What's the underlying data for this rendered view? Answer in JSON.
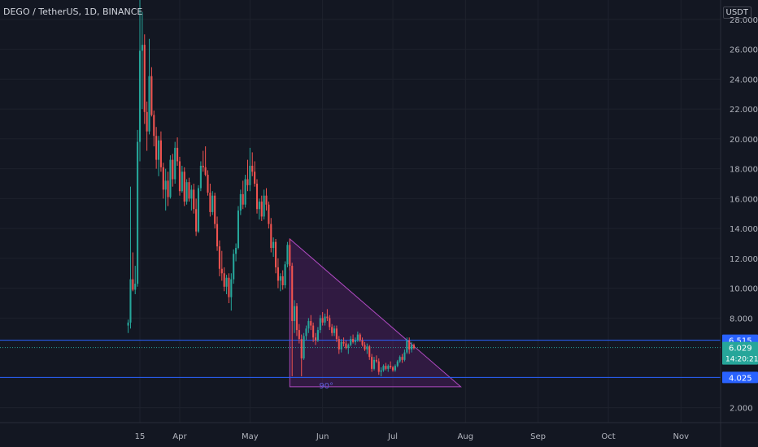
{
  "header": {
    "symbol": "DEGO / TetherUS, 1D, BINANCE",
    "currency": "USDT"
  },
  "chart_data": {
    "type": "candlestick",
    "title": "DEGO / TetherUS, 1D, BINANCE",
    "y_axis": {
      "ticks": [
        "28.000",
        "26.000",
        "24.000",
        "22.000",
        "20.000",
        "18.000",
        "16.000",
        "14.000",
        "12.000",
        "10.000",
        "8.000",
        "4.000",
        "2.000"
      ],
      "tick_values": [
        28,
        26,
        24,
        22,
        20,
        18,
        16,
        14,
        12,
        10,
        8,
        4,
        2
      ],
      "ylim": [
        1,
        29.3
      ]
    },
    "x_axis": {
      "labels": [
        "15",
        "Apr",
        "May",
        "Jun",
        "Jul",
        "Aug",
        "Sep",
        "Oct",
        "Nov"
      ],
      "dates": [
        "2021-03-15",
        "2021-04-01",
        "2021-05-01",
        "2021-06-01",
        "2021-07-01",
        "2021-08-01",
        "2021-09-01",
        "2021-10-01",
        "2021-11-01"
      ]
    },
    "grid": true,
    "horizontal_lines": [
      {
        "price": 6.515,
        "label": "6.515",
        "color": "#2962ff"
      },
      {
        "price": 4.025,
        "label": "4.025",
        "color": "#2962ff"
      }
    ],
    "price_marker": {
      "price": 6.029,
      "label": "6.029",
      "countdown": "14:20:21",
      "color": "#26a69a"
    },
    "triangle": {
      "points": [
        [
          "2021-05-18",
          13.3
        ],
        [
          "2021-05-18",
          3.4
        ],
        [
          "2021-07-30",
          3.4
        ]
      ],
      "angle_label": "90°",
      "color": "#9c27b0"
    },
    "series": [
      {
        "name": "DEGO/USDT",
        "colors": {
          "up": "#26a69a",
          "down": "#ef5350"
        },
        "ohlc": [
          [
            "2021-03-10",
            7.5,
            7.9,
            7.0,
            7.7
          ],
          [
            "2021-03-11",
            7.7,
            16.8,
            7.3,
            10.6
          ],
          [
            "2021-03-12",
            10.6,
            12.4,
            9.8,
            9.9
          ],
          [
            "2021-03-13",
            9.9,
            11.5,
            9.6,
            10.3
          ],
          [
            "2021-03-14",
            10.3,
            20.6,
            10.1,
            19.8
          ],
          [
            "2021-03-15",
            19.8,
            29.3,
            18.5,
            25.9
          ],
          [
            "2021-03-16",
            25.9,
            28.5,
            22.0,
            26.3
          ],
          [
            "2021-03-17",
            26.3,
            27.0,
            21.0,
            21.8
          ],
          [
            "2021-03-18",
            21.8,
            22.5,
            19.2,
            20.5
          ],
          [
            "2021-03-19",
            20.5,
            26.7,
            20.3,
            24.2
          ],
          [
            "2021-03-20",
            24.2,
            24.8,
            21.5,
            21.6
          ],
          [
            "2021-03-21",
            21.6,
            21.9,
            19.5,
            20.2
          ],
          [
            "2021-03-22",
            20.2,
            20.8,
            18.0,
            18.6
          ],
          [
            "2021-03-23",
            18.6,
            20.2,
            17.5,
            19.9
          ],
          [
            "2021-03-24",
            19.9,
            20.5,
            17.8,
            18.1
          ],
          [
            "2021-03-25",
            18.1,
            18.4,
            16.0,
            16.6
          ],
          [
            "2021-03-26",
            16.6,
            18.0,
            15.2,
            17.2
          ],
          [
            "2021-03-27",
            17.2,
            17.8,
            15.5,
            16.1
          ],
          [
            "2021-03-28",
            16.1,
            18.9,
            16.0,
            18.6
          ],
          [
            "2021-03-29",
            18.6,
            19.0,
            16.8,
            17.3
          ],
          [
            "2021-03-30",
            17.3,
            19.8,
            17.0,
            19.4
          ],
          [
            "2021-03-31",
            19.4,
            20.1,
            18.2,
            18.5
          ],
          [
            "2021-04-01",
            18.5,
            18.8,
            16.2,
            16.5
          ],
          [
            "2021-04-02",
            16.5,
            18.2,
            16.4,
            17.8
          ],
          [
            "2021-04-03",
            17.8,
            18.1,
            15.5,
            15.8
          ],
          [
            "2021-04-04",
            15.8,
            17.3,
            15.6,
            17.1
          ],
          [
            "2021-04-05",
            17.1,
            17.4,
            15.8,
            16.0
          ],
          [
            "2021-04-06",
            16.0,
            16.9,
            15.2,
            16.6
          ],
          [
            "2021-04-07",
            16.6,
            17.0,
            15.0,
            15.3
          ],
          [
            "2021-04-08",
            15.3,
            16.0,
            13.5,
            13.8
          ],
          [
            "2021-04-09",
            13.8,
            16.9,
            13.7,
            16.7
          ],
          [
            "2021-04-10",
            16.7,
            18.5,
            16.5,
            18.2
          ],
          [
            "2021-04-11",
            18.2,
            19.2,
            17.8,
            18.1
          ],
          [
            "2021-04-12",
            18.1,
            19.5,
            17.5,
            17.6
          ],
          [
            "2021-04-13",
            17.6,
            17.9,
            16.2,
            16.4
          ],
          [
            "2021-04-14",
            16.4,
            17.0,
            14.8,
            15.1
          ],
          [
            "2021-04-15",
            15.1,
            16.5,
            14.9,
            16.2
          ],
          [
            "2021-04-16",
            16.2,
            16.4,
            14.0,
            14.3
          ],
          [
            "2021-04-17",
            14.3,
            14.8,
            12.5,
            12.8
          ],
          [
            "2021-04-18",
            12.8,
            13.2,
            10.8,
            11.3
          ],
          [
            "2021-04-19",
            11.3,
            12.5,
            10.5,
            11.0
          ],
          [
            "2021-04-20",
            11.0,
            11.4,
            9.8,
            10.1
          ],
          [
            "2021-04-21",
            10.1,
            10.9,
            9.6,
            10.7
          ],
          [
            "2021-04-22",
            10.7,
            11.0,
            9.0,
            9.4
          ],
          [
            "2021-04-23",
            9.4,
            11.0,
            8.5,
            10.6
          ],
          [
            "2021-04-24",
            10.6,
            12.6,
            10.3,
            12.3
          ],
          [
            "2021-04-25",
            12.3,
            13.0,
            11.8,
            12.7
          ],
          [
            "2021-04-26",
            12.7,
            15.5,
            12.6,
            15.2
          ],
          [
            "2021-04-27",
            15.2,
            16.6,
            14.9,
            16.3
          ],
          [
            "2021-04-28",
            16.3,
            17.2,
            15.3,
            15.6
          ],
          [
            "2021-04-29",
            15.6,
            17.6,
            15.4,
            17.3
          ],
          [
            "2021-04-30",
            17.3,
            18.6,
            16.5,
            16.9
          ],
          [
            "2021-05-01",
            16.9,
            19.4,
            16.5,
            18.2
          ],
          [
            "2021-05-02",
            18.2,
            19.1,
            17.5,
            17.8
          ],
          [
            "2021-05-03",
            17.8,
            18.5,
            16.8,
            17.0
          ],
          [
            "2021-05-04",
            17.0,
            17.3,
            15.0,
            15.3
          ],
          [
            "2021-05-05",
            15.3,
            16.0,
            14.6,
            15.8
          ],
          [
            "2021-05-06",
            15.8,
            16.2,
            14.5,
            14.8
          ],
          [
            "2021-05-07",
            14.8,
            16.6,
            14.6,
            16.2
          ],
          [
            "2021-05-08",
            16.2,
            16.7,
            15.2,
            15.6
          ],
          [
            "2021-05-09",
            15.6,
            15.8,
            14.0,
            14.3
          ],
          [
            "2021-05-10",
            14.3,
            14.7,
            12.4,
            12.7
          ],
          [
            "2021-05-11",
            12.7,
            13.4,
            12.1,
            13.1
          ],
          [
            "2021-05-12",
            13.1,
            13.3,
            11.0,
            11.4
          ],
          [
            "2021-05-13",
            11.4,
            12.0,
            10.0,
            10.5
          ],
          [
            "2021-05-14",
            10.5,
            11.0,
            9.8,
            10.8
          ],
          [
            "2021-05-15",
            10.8,
            11.2,
            9.9,
            10.2
          ],
          [
            "2021-05-16",
            10.2,
            11.8,
            10.0,
            11.6
          ],
          [
            "2021-05-17",
            11.6,
            13.1,
            11.4,
            12.9
          ],
          [
            "2021-05-18",
            12.9,
            13.3,
            11.2,
            11.5
          ],
          [
            "2021-05-19",
            11.5,
            11.7,
            4.1,
            7.8
          ],
          [
            "2021-05-20",
            7.8,
            9.2,
            7.0,
            8.8
          ],
          [
            "2021-05-21",
            8.8,
            9.0,
            6.8,
            7.2
          ],
          [
            "2021-05-22",
            7.2,
            7.6,
            6.3,
            6.6
          ],
          [
            "2021-05-23",
            6.6,
            6.9,
            4.1,
            5.3
          ],
          [
            "2021-05-24",
            5.3,
            7.0,
            5.2,
            6.8
          ],
          [
            "2021-05-25",
            6.8,
            7.5,
            6.5,
            7.3
          ],
          [
            "2021-05-26",
            7.3,
            8.0,
            7.0,
            7.8
          ],
          [
            "2021-05-27",
            7.8,
            8.2,
            7.2,
            7.5
          ],
          [
            "2021-05-28",
            7.5,
            7.7,
            6.4,
            6.7
          ],
          [
            "2021-05-29",
            6.7,
            7.0,
            6.2,
            6.5
          ],
          [
            "2021-05-30",
            6.5,
            7.4,
            6.4,
            7.2
          ],
          [
            "2021-05-31",
            7.2,
            8.2,
            7.0,
            8.0
          ],
          [
            "2021-06-01",
            8.0,
            8.4,
            7.5,
            7.7
          ],
          [
            "2021-06-02",
            7.7,
            8.3,
            7.5,
            8.1
          ],
          [
            "2021-06-03",
            8.1,
            8.6,
            7.8,
            8.0
          ],
          [
            "2021-06-04",
            8.0,
            8.2,
            7.2,
            7.4
          ],
          [
            "2021-06-05",
            7.4,
            7.6,
            6.8,
            7.0
          ],
          [
            "2021-06-06",
            7.0,
            7.5,
            6.8,
            7.3
          ],
          [
            "2021-06-07",
            7.3,
            7.5,
            6.4,
            6.6
          ],
          [
            "2021-06-08",
            6.6,
            6.8,
            5.6,
            5.9
          ],
          [
            "2021-06-09",
            5.9,
            6.6,
            5.7,
            6.4
          ],
          [
            "2021-06-10",
            6.4,
            6.7,
            6.1,
            6.3
          ],
          [
            "2021-06-11",
            6.3,
            6.5,
            5.9,
            6.0
          ],
          [
            "2021-06-12",
            6.0,
            6.3,
            5.6,
            6.2
          ],
          [
            "2021-06-13",
            6.2,
            6.8,
            6.1,
            6.6
          ],
          [
            "2021-06-14",
            6.6,
            6.9,
            6.3,
            6.4
          ],
          [
            "2021-06-15",
            6.4,
            6.7,
            6.2,
            6.5
          ],
          [
            "2021-06-16",
            6.5,
            7.1,
            6.4,
            6.9
          ],
          [
            "2021-06-17",
            6.9,
            7.0,
            6.4,
            6.5
          ],
          [
            "2021-06-18",
            6.5,
            6.7,
            6.1,
            6.2
          ],
          [
            "2021-06-19",
            6.2,
            6.4,
            5.8,
            5.9
          ],
          [
            "2021-06-20",
            5.9,
            6.3,
            5.6,
            6.1
          ],
          [
            "2021-06-21",
            6.1,
            6.2,
            5.2,
            5.4
          ],
          [
            "2021-06-22",
            5.4,
            5.6,
            4.4,
            4.6
          ],
          [
            "2021-06-23",
            4.6,
            5.4,
            4.5,
            5.2
          ],
          [
            "2021-06-24",
            5.2,
            5.5,
            5.0,
            5.1
          ],
          [
            "2021-06-25",
            5.1,
            5.3,
            4.2,
            4.4
          ],
          [
            "2021-06-26",
            4.4,
            4.7,
            4.1,
            4.5
          ],
          [
            "2021-06-27",
            4.5,
            4.9,
            4.4,
            4.8
          ],
          [
            "2021-06-28",
            4.8,
            5.0,
            4.5,
            4.6
          ],
          [
            "2021-06-29",
            4.6,
            4.9,
            4.4,
            4.8
          ],
          [
            "2021-06-30",
            4.8,
            5.1,
            4.6,
            4.7
          ],
          [
            "2021-07-01",
            4.7,
            4.8,
            4.4,
            4.5
          ],
          [
            "2021-07-02",
            4.5,
            4.9,
            4.4,
            4.8
          ],
          [
            "2021-07-03",
            4.8,
            5.2,
            4.7,
            5.1
          ],
          [
            "2021-07-04",
            5.1,
            5.5,
            5.0,
            5.4
          ],
          [
            "2021-07-05",
            5.4,
            5.6,
            5.0,
            5.2
          ],
          [
            "2021-07-06",
            5.2,
            5.9,
            5.1,
            5.7
          ],
          [
            "2021-07-07",
            5.7,
            6.7,
            5.6,
            6.5
          ],
          [
            "2021-07-08",
            6.5,
            6.7,
            5.6,
            5.9
          ],
          [
            "2021-07-09",
            5.9,
            6.4,
            5.7,
            6.2
          ],
          [
            "2021-07-10",
            6.2,
            6.3,
            5.9,
            6.0
          ]
        ]
      }
    ]
  }
}
